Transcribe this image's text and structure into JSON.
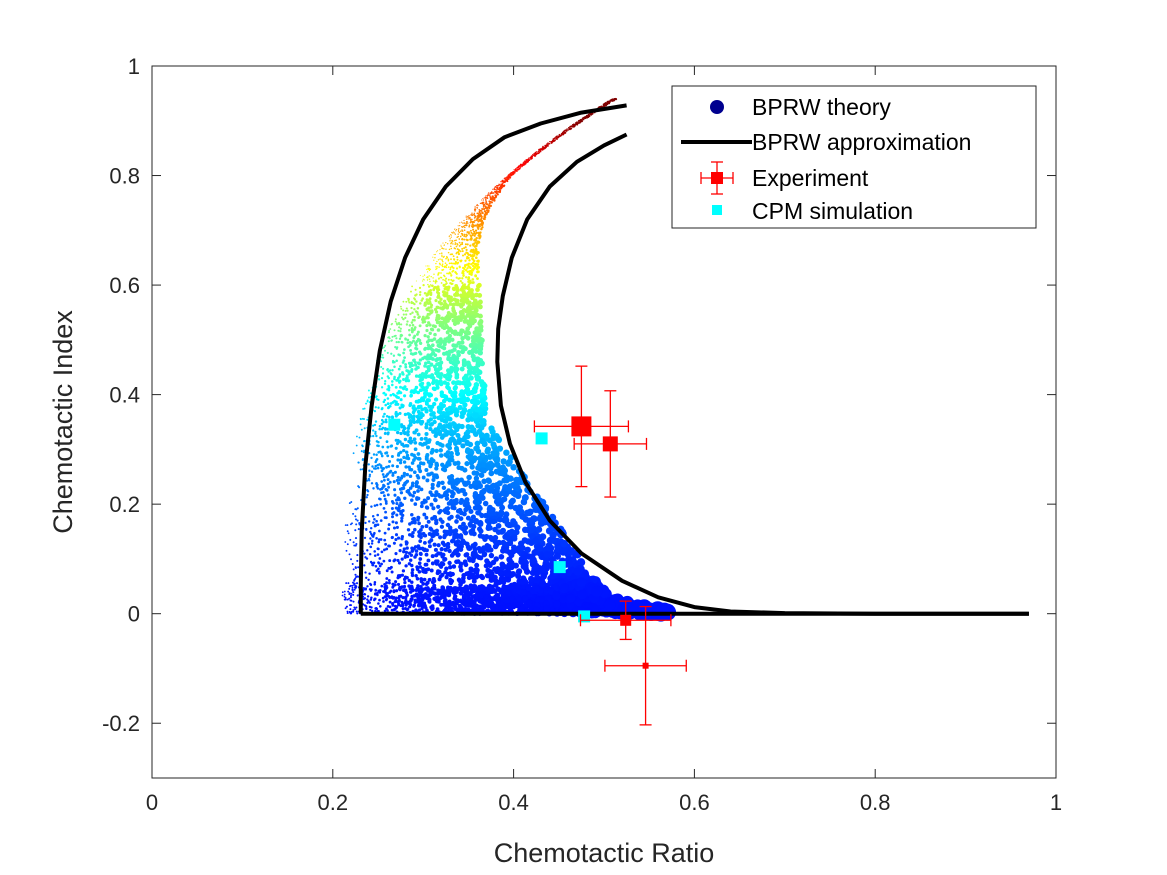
{
  "chart_data": {
    "type": "scatter",
    "title": "",
    "xlabel": "Chemotactic Ratio",
    "ylabel": "Chemotactic Index",
    "xlim": [
      0,
      1
    ],
    "ylim": [
      -0.3,
      1
    ],
    "xticks": [
      0,
      0.2,
      0.4,
      0.6,
      0.8,
      1
    ],
    "xtick_labels": [
      "0",
      "0.2",
      "0.4",
      "0.6",
      "0.8",
      "1"
    ],
    "yticks": [
      -0.2,
      0,
      0.2,
      0.4,
      0.6,
      0.8,
      1
    ],
    "ytick_labels": [
      "-0.2",
      "0",
      "0.2",
      "0.4",
      "0.6",
      "0.8",
      "1"
    ],
    "grid": false,
    "legend_position": "top-right",
    "legend": [
      {
        "label": "BPRW theory",
        "marker": "circle",
        "color": "#00008f"
      },
      {
        "label": "BPRW approximation",
        "marker": "line",
        "color": "#000000"
      },
      {
        "label": "Experiment",
        "marker": "square-errorbar",
        "color": "#ff0000"
      },
      {
        "label": "CPM simulation",
        "marker": "square",
        "color": "#00ffff"
      }
    ],
    "series": [
      {
        "name": "BPRW theory",
        "kind": "scatter-cloud",
        "colormap": "jet",
        "description_of_envelope": {
          "lower_boundary": [
            [
              0.21,
              0.0
            ],
            [
              0.22,
              0.15
            ],
            [
              0.23,
              0.3
            ],
            [
              0.25,
              0.45
            ],
            [
              0.27,
              0.58
            ],
            [
              0.3,
              0.7
            ],
            [
              0.34,
              0.8
            ],
            [
              0.39,
              0.87
            ],
            [
              0.44,
              0.91
            ],
            [
              0.5,
              0.94
            ]
          ],
          "upper_boundary": [
            [
              0.22,
              0.0
            ],
            [
              0.3,
              0.0
            ],
            [
              0.4,
              0.0
            ],
            [
              0.5,
              0.0
            ],
            [
              0.58,
              0.0
            ],
            [
              0.5,
              0.03
            ],
            [
              0.43,
              0.1
            ],
            [
              0.39,
              0.2
            ],
            [
              0.37,
              0.35
            ],
            [
              0.36,
              0.5
            ],
            [
              0.36,
              0.65
            ],
            [
              0.37,
              0.75
            ],
            [
              0.39,
              0.82
            ],
            [
              0.43,
              0.87
            ],
            [
              0.5,
              0.94
            ]
          ]
        }
      },
      {
        "name": "BPRW approximation",
        "kind": "line",
        "color": "#000000",
        "x": [
          0.231,
          0.231,
          0.232,
          0.236,
          0.243,
          0.252,
          0.264,
          0.28,
          0.3,
          0.325,
          0.355,
          0.39,
          0.43,
          0.475,
          0.525
        ],
        "y": [
          0.0,
          0.05,
          0.15,
          0.27,
          0.38,
          0.48,
          0.57,
          0.65,
          0.72,
          0.78,
          0.83,
          0.87,
          0.895,
          0.915,
          0.928
        ]
      },
      {
        "name": "BPRW approximation",
        "kind": "line",
        "color": "#000000",
        "x": [
          0.231,
          0.35,
          0.5,
          0.6,
          0.7,
          0.8,
          0.9,
          0.97
        ],
        "y": [
          0.0,
          0.0,
          0.0,
          0.0,
          0.0,
          0.0,
          0.0,
          0.0
        ]
      },
      {
        "name": "BPRW approximation",
        "kind": "line",
        "color": "#000000",
        "x": [
          0.525,
          0.5,
          0.47,
          0.44,
          0.415,
          0.398,
          0.388,
          0.383,
          0.382,
          0.386,
          0.396,
          0.413,
          0.44,
          0.475,
          0.52,
          0.56,
          0.6,
          0.64,
          0.7,
          0.8,
          0.97
        ],
        "y": [
          0.875,
          0.855,
          0.825,
          0.78,
          0.72,
          0.65,
          0.58,
          0.52,
          0.46,
          0.38,
          0.31,
          0.24,
          0.17,
          0.11,
          0.06,
          0.03,
          0.012,
          0.004,
          0.001,
          0.0,
          0.0
        ]
      },
      {
        "name": "Experiment",
        "kind": "errorbar",
        "color": "#ff0000",
        "points": [
          {
            "x": 0.475,
            "y": 0.342,
            "xerr": 0.052,
            "yerr": 0.11,
            "size": 20
          },
          {
            "x": 0.507,
            "y": 0.31,
            "xerr": 0.04,
            "yerr": 0.097,
            "size": 15
          },
          {
            "x": 0.524,
            "y": -0.012,
            "xerr": 0.05,
            "yerr": 0.035,
            "size": 11
          },
          {
            "x": 0.546,
            "y": -0.095,
            "xerr": 0.045,
            "yerr": 0.108,
            "size": 6
          }
        ]
      },
      {
        "name": "CPM simulation",
        "kind": "scatter",
        "color": "#00ffff",
        "x": [
          0.268,
          0.431,
          0.451,
          0.478
        ],
        "y": [
          0.345,
          0.32,
          0.085,
          -0.005
        ]
      }
    ]
  }
}
